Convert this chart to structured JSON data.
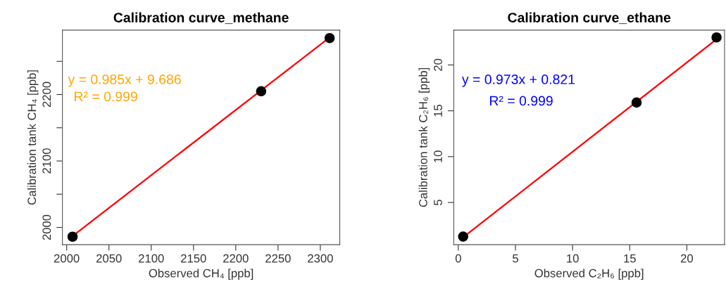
{
  "chart_data": [
    {
      "type": "scatter",
      "title": "Calibration curve_methane",
      "xlabel": "Observed CH₄ [ppb]",
      "ylabel": "Calibration tank CH₄ [ppb]",
      "x": [
        2007,
        2230,
        2311
      ],
      "series": [
        {
          "color": "#000000",
          "values": [
            1986,
            2205,
            2285
          ],
          "marker": "circle"
        },
        {
          "type": "line",
          "color": "#ff0000",
          "x": [
            2007,
            2311
          ],
          "values": [
            1987,
            2286
          ],
          "line_style": "solid"
        }
      ],
      "annotations": [
        "y = 0.985x + 9.686",
        "R² = 0.999"
      ],
      "xlim": [
        1995,
        2323
      ],
      "ylim": [
        1974,
        2297
      ],
      "xticks": [
        2000,
        2050,
        2100,
        2150,
        2200,
        2250,
        2300
      ],
      "yticks": [
        2000,
        {
          "value": 2050,
          "label": null
        },
        2100,
        {
          "value": 2150,
          "label": null
        },
        2200,
        {
          "value": 2250,
          "label": null
        }
      ],
      "grid": false,
      "legend": false
    },
    {
      "type": "scatter",
      "title": "Calibration curve_ethane",
      "xlabel": "Observed C₂H₆ [ppb]",
      "ylabel": "Calibration tank C₂H₆ [ppb]",
      "x": [
        0.42,
        15.6,
        22.6
      ],
      "series": [
        {
          "color": "#000000",
          "values": [
            1.28,
            15.9,
            23.0
          ],
          "marker": "circle"
        },
        {
          "type": "line",
          "color": "#ff0000",
          "x": [
            0.42,
            22.6
          ],
          "values": [
            1.2,
            22.8
          ],
          "line_style": "solid"
        }
      ],
      "annotations": [
        "y = 0.973x + 0.821",
        "R² = 0.999"
      ],
      "xlim": [
        -0.4,
        23.3
      ],
      "ylim": [
        0.4,
        23.8
      ],
      "xticks": [
        0,
        5,
        10,
        15,
        20
      ],
      "yticks": [
        5,
        10,
        15,
        20
      ],
      "grid": false,
      "legend": false
    }
  ]
}
